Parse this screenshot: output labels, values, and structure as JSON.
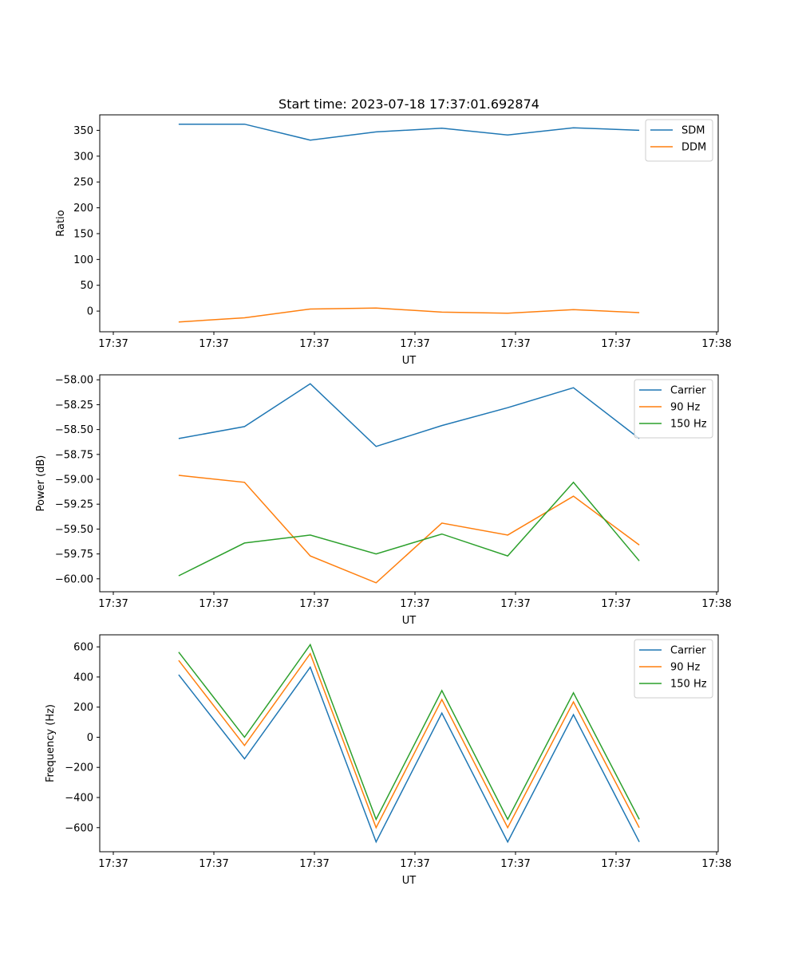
{
  "figure_title": "Start time: 2023-07-18 17:37:01.692874",
  "chart_data": [
    {
      "type": "line",
      "title": "Start time: 2023-07-18 17:37:01.692874",
      "xlabel": "UT",
      "ylabel": "Ratio",
      "x_tick_labels": [
        "17:37",
        "17:37",
        "17:37",
        "17:37",
        "17:37",
        "17:37",
        "17:38"
      ],
      "x": [
        0.5,
        1,
        1.5,
        2,
        2.5,
        3,
        3.5,
        4
      ],
      "xlim": [
        -0.1,
        4.6
      ],
      "ylim": [
        -40,
        380
      ],
      "y_ticks": [
        0,
        50,
        100,
        150,
        200,
        250,
        300,
        350
      ],
      "legend_position": "top-right",
      "series": [
        {
          "name": "SDM",
          "color": "#1f77b4",
          "values": [
            362,
            362,
            331,
            347,
            354,
            341,
            355,
            350
          ]
        },
        {
          "name": "DDM",
          "color": "#ff7f0e",
          "values": [
            -21,
            -13,
            4,
            6,
            -2,
            -4,
            3,
            -3
          ]
        }
      ]
    },
    {
      "type": "line",
      "title": "",
      "xlabel": "UT",
      "ylabel": "Power (dB)",
      "x_tick_labels": [
        "17:37",
        "17:37",
        "17:37",
        "17:37",
        "17:37",
        "17:37",
        "17:38"
      ],
      "x": [
        0.5,
        1,
        1.5,
        2,
        2.5,
        3,
        3.5,
        4
      ],
      "xlim": [
        -0.1,
        4.6
      ],
      "ylim": [
        -60.13,
        -57.95
      ],
      "y_ticks": [
        -60.0,
        -59.75,
        -59.5,
        -59.25,
        -59.0,
        -58.75,
        -58.5,
        -58.25,
        -58.0
      ],
      "y_tick_labels": [
        "−60.00",
        "−59.75",
        "−59.50",
        "−59.25",
        "−59.00",
        "−58.75",
        "−58.50",
        "−58.25",
        "−58.00"
      ],
      "legend_position": "top-right",
      "series": [
        {
          "name": "Carrier",
          "color": "#1f77b4",
          "values": [
            -58.59,
            -58.47,
            -58.04,
            -58.67,
            -58.46,
            -58.28,
            -58.08,
            -58.59
          ]
        },
        {
          "name": "90 Hz",
          "color": "#ff7f0e",
          "values": [
            -58.96,
            -59.03,
            -59.77,
            -60.04,
            -59.44,
            -59.56,
            -59.17,
            -59.66
          ]
        },
        {
          "name": "150 Hz",
          "color": "#2ca02c",
          "values": [
            -59.97,
            -59.64,
            -59.56,
            -59.75,
            -59.55,
            -59.77,
            -59.03,
            -59.82
          ]
        }
      ]
    },
    {
      "type": "line",
      "title": "",
      "xlabel": "UT",
      "ylabel": "Frequency (Hz)",
      "x_tick_labels": [
        "17:37",
        "17:37",
        "17:37",
        "17:37",
        "17:37",
        "17:37",
        "17:38"
      ],
      "x": [
        0.5,
        1,
        1.5,
        2,
        2.5,
        3,
        3.5,
        4
      ],
      "xlim": [
        -0.1,
        4.6
      ],
      "ylim": [
        -760,
        680
      ],
      "y_ticks": [
        -600,
        -400,
        -200,
        0,
        200,
        400,
        600
      ],
      "y_tick_labels": [
        "−600",
        "−400",
        "−200",
        "0",
        "200",
        "400",
        "600"
      ],
      "legend_position": "top-right",
      "series": [
        {
          "name": "Carrier",
          "color": "#1f77b4",
          "values": [
            415,
            -143,
            465,
            -695,
            160,
            -695,
            150,
            -695
          ]
        },
        {
          "name": "90 Hz",
          "color": "#ff7f0e",
          "values": [
            510,
            -55,
            555,
            -600,
            250,
            -600,
            235,
            -600
          ]
        },
        {
          "name": "150 Hz",
          "color": "#2ca02c",
          "values": [
            565,
            0,
            615,
            -545,
            310,
            -545,
            295,
            -545
          ]
        }
      ]
    }
  ]
}
